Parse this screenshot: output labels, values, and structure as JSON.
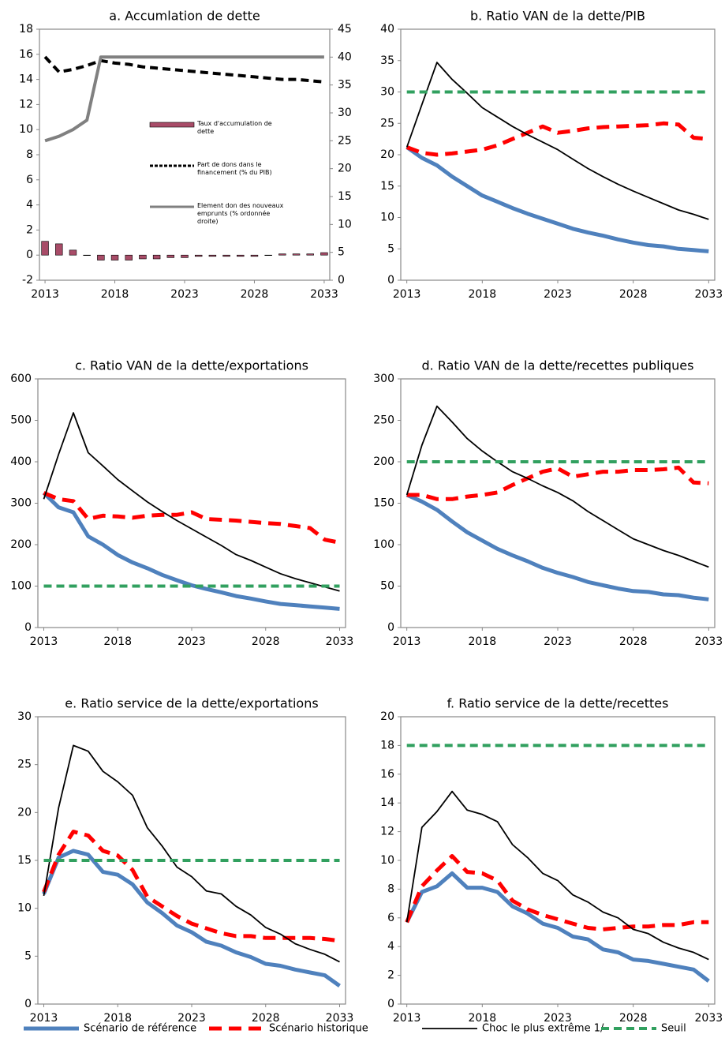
{
  "chart_data": [
    {
      "type": "combo",
      "title": "a. Accumlation  de dette",
      "x": [
        2013,
        2014,
        2015,
        2016,
        2017,
        2018,
        2019,
        2020,
        2021,
        2022,
        2023,
        2024,
        2025,
        2026,
        2027,
        2028,
        2029,
        2030,
        2031,
        2032,
        2033
      ],
      "xlim": [
        2012.6,
        2033.4
      ],
      "xticks": [
        2013,
        2018,
        2023,
        2028,
        2033
      ],
      "ylim": [
        -2,
        18
      ],
      "yticks": [
        -2,
        0,
        2,
        4,
        6,
        8,
        10,
        12,
        14,
        16,
        18
      ],
      "y2lim": [
        0,
        45
      ],
      "y2ticks": [
        0,
        5,
        10,
        15,
        20,
        25,
        30,
        35,
        40,
        45
      ],
      "series": [
        {
          "name": "Taux d'accumulation  de dette",
          "type": "bar",
          "color": "#a84c68",
          "values": [
            1.1,
            0.9,
            0.4,
            0,
            -0.4,
            -0.4,
            -0.4,
            -0.3,
            -0.3,
            -0.2,
            -0.2,
            -0.1,
            -0.1,
            -0.1,
            -0.1,
            -0.1,
            0,
            0.1,
            0.1,
            0.1,
            0.2
          ]
        },
        {
          "name": "Part de dons dans le financement  (% du PIB)",
          "type": "line",
          "style": "dashed-medium",
          "color": "#000000",
          "values": [
            15.8,
            14.6,
            14.8,
            15.1,
            15.5,
            15.3,
            15.2,
            15.0,
            14.9,
            14.8,
            14.7,
            14.6,
            14.5,
            14.4,
            14.3,
            14.2,
            14.1,
            14.0,
            14.0,
            13.9,
            13.8
          ]
        },
        {
          "name": "Element don des nouveaux emprunts (% ordonnée droite)",
          "type": "line",
          "style": "solid-medium",
          "axis": "y2",
          "color": "#808080",
          "values": [
            25,
            25.8,
            27,
            28.7,
            40,
            40,
            40,
            40,
            40,
            40,
            40,
            40,
            40,
            40,
            40,
            40,
            40,
            40,
            40,
            40,
            40
          ]
        }
      ]
    },
    {
      "type": "line",
      "title": "b. Ratio VAN  de la dette/PIB",
      "x": [
        2013,
        2014,
        2015,
        2016,
        2017,
        2018,
        2019,
        2020,
        2021,
        2022,
        2023,
        2024,
        2025,
        2026,
        2027,
        2028,
        2029,
        2030,
        2031,
        2032,
        2033
      ],
      "xlim": [
        2012.6,
        2033.4
      ],
      "xticks": [
        2013,
        2018,
        2023,
        2028,
        2033
      ],
      "ylim": [
        0,
        40
      ],
      "yticks": [
        0,
        5,
        10,
        15,
        20,
        25,
        30,
        35,
        40
      ],
      "series": [
        {
          "style": "solid-thick",
          "color": "#4f81bd",
          "values": [
            21.2,
            19.5,
            18.3,
            16.5,
            15,
            13.5,
            12.5,
            11.5,
            10.6,
            9.8,
            9,
            8.2,
            7.6,
            7.1,
            6.5,
            6,
            5.6,
            5.4,
            5,
            4.8,
            4.6
          ]
        },
        {
          "style": "dashed-thick",
          "color": "#ff0000",
          "values": [
            21.2,
            20.3,
            20,
            20.2,
            20.5,
            20.8,
            21.5,
            22.5,
            23.5,
            24.5,
            23.5,
            23.8,
            24.2,
            24.4,
            24.5,
            24.6,
            24.7,
            25,
            24.8,
            22.7,
            22.5
          ]
        },
        {
          "style": "solid-thin",
          "color": "#000000",
          "values": [
            21.2,
            28,
            34.7,
            32,
            29.8,
            27.5,
            26,
            24.5,
            23.2,
            22,
            20.8,
            19.3,
            17.8,
            16.5,
            15.3,
            14.2,
            13.2,
            12.2,
            11.2,
            10.5,
            9.7
          ]
        },
        {
          "style": "dashed-medium",
          "color": "#31a05f",
          "values": [
            30,
            30,
            30,
            30,
            30,
            30,
            30,
            30,
            30,
            30,
            30,
            30,
            30,
            30,
            30,
            30,
            30,
            30,
            30,
            30,
            30
          ]
        }
      ]
    },
    {
      "type": "line",
      "title": "c. Ratio VAN de la dette/exportations",
      "x": [
        2013,
        2014,
        2015,
        2016,
        2017,
        2018,
        2019,
        2020,
        2021,
        2022,
        2023,
        2024,
        2025,
        2026,
        2027,
        2028,
        2029,
        2030,
        2031,
        2032,
        2033
      ],
      "xlim": [
        2012.6,
        2033.4
      ],
      "xticks": [
        2013,
        2018,
        2023,
        2028,
        2033
      ],
      "ylim": [
        0,
        600
      ],
      "yticks": [
        0,
        100,
        200,
        300,
        400,
        500,
        600
      ],
      "series": [
        {
          "style": "solid-thick",
          "color": "#4f81bd",
          "values": [
            325,
            290,
            278,
            220,
            200,
            175,
            157,
            143,
            127,
            114,
            102,
            93,
            85,
            76,
            70,
            63,
            57,
            54,
            51,
            48,
            45
          ]
        },
        {
          "style": "dashed-thick",
          "color": "#ff0000",
          "values": [
            325,
            310,
            305,
            262,
            270,
            268,
            265,
            270,
            272,
            272,
            278,
            262,
            260,
            258,
            255,
            252,
            250,
            245,
            240,
            212,
            205
          ]
        },
        {
          "style": "solid-thin",
          "color": "#000000",
          "values": [
            310,
            418,
            518,
            422,
            390,
            357,
            330,
            303,
            280,
            258,
            238,
            218,
            198,
            176,
            162,
            146,
            130,
            118,
            108,
            98,
            88
          ]
        },
        {
          "style": "dashed-medium",
          "color": "#31a05f",
          "values": [
            100,
            100,
            100,
            100,
            100,
            100,
            100,
            100,
            100,
            100,
            100,
            100,
            100,
            100,
            100,
            100,
            100,
            100,
            100,
            100,
            100
          ]
        }
      ]
    },
    {
      "type": "line",
      "title": "d. Ratio VAN  de la dette/recettes  publiques",
      "x": [
        2013,
        2014,
        2015,
        2016,
        2017,
        2018,
        2019,
        2020,
        2021,
        2022,
        2023,
        2024,
        2025,
        2026,
        2027,
        2028,
        2029,
        2030,
        2031,
        2032,
        2033
      ],
      "xlim": [
        2012.6,
        2033.4
      ],
      "xticks": [
        2013,
        2018,
        2023,
        2028,
        2033
      ],
      "ylim": [
        0,
        300
      ],
      "yticks": [
        0,
        50,
        100,
        150,
        200,
        250,
        300
      ],
      "series": [
        {
          "style": "solid-thick",
          "color": "#4f81bd",
          "values": [
            160,
            152,
            142,
            128,
            115,
            105,
            95,
            87,
            80,
            72,
            66,
            61,
            55,
            51,
            47,
            44,
            43,
            40,
            39,
            36,
            34
          ]
        },
        {
          "style": "dashed-thick",
          "color": "#ff0000",
          "values": [
            160,
            160,
            155,
            155,
            158,
            160,
            163,
            172,
            180,
            188,
            192,
            182,
            185,
            188,
            188,
            190,
            190,
            191,
            193,
            175,
            174
          ]
        },
        {
          "style": "solid-thin",
          "color": "#000000",
          "values": [
            160,
            220,
            267,
            248,
            228,
            213,
            200,
            188,
            180,
            171,
            163,
            153,
            140,
            129,
            118,
            107,
            100,
            93,
            87,
            80,
            73
          ]
        },
        {
          "style": "dashed-medium",
          "color": "#31a05f",
          "values": [
            200,
            200,
            200,
            200,
            200,
            200,
            200,
            200,
            200,
            200,
            200,
            200,
            200,
            200,
            200,
            200,
            200,
            200,
            200,
            200,
            200
          ]
        }
      ]
    },
    {
      "type": "line",
      "title": "e. Ratio service de la dette/exportations",
      "x": [
        2013,
        2014,
        2015,
        2016,
        2017,
        2018,
        2019,
        2020,
        2021,
        2022,
        2023,
        2024,
        2025,
        2026,
        2027,
        2028,
        2029,
        2030,
        2031,
        2032,
        2033
      ],
      "xlim": [
        2012.6,
        2033.4
      ],
      "xticks": [
        2013,
        2018,
        2023,
        2028,
        2033
      ],
      "ylim": [
        0,
        30
      ],
      "yticks": [
        0,
        5,
        10,
        15,
        20,
        25,
        30
      ],
      "series": [
        {
          "style": "solid-thick",
          "color": "#4f81bd",
          "values": [
            11.5,
            15.3,
            16,
            15.6,
            13.8,
            13.5,
            12.5,
            10.6,
            9.5,
            8.2,
            7.5,
            6.5,
            6.1,
            5.4,
            4.9,
            4.2,
            4.0,
            3.6,
            3.3,
            3.0,
            1.9
          ]
        },
        {
          "style": "dashed-thick",
          "color": "#ff0000",
          "values": [
            11.7,
            15.6,
            18,
            17.6,
            16,
            15.5,
            14,
            11.2,
            10.2,
            9.2,
            8.4,
            7.9,
            7.4,
            7.1,
            7.1,
            6.9,
            6.9,
            6.9,
            6.9,
            6.8,
            6.6
          ]
        },
        {
          "style": "solid-thin",
          "color": "#000000",
          "values": [
            11.3,
            20.5,
            27,
            26.4,
            24.3,
            23.2,
            21.8,
            18.4,
            16.5,
            14.3,
            13.3,
            11.8,
            11.5,
            10.2,
            9.3,
            8,
            7.3,
            6.3,
            5.7,
            5.2,
            4.4
          ]
        },
        {
          "style": "dashed-medium",
          "color": "#31a05f",
          "values": [
            15,
            15,
            15,
            15,
            15,
            15,
            15,
            15,
            15,
            15,
            15,
            15,
            15,
            15,
            15,
            15,
            15,
            15,
            15,
            15,
            15
          ]
        }
      ]
    },
    {
      "type": "line",
      "title": "f. Ratio service de la dette/recettes",
      "x": [
        2013,
        2014,
        2015,
        2016,
        2017,
        2018,
        2019,
        2020,
        2021,
        2022,
        2023,
        2024,
        2025,
        2026,
        2027,
        2028,
        2029,
        2030,
        2031,
        2032,
        2033
      ],
      "xlim": [
        2012.6,
        2033.4
      ],
      "xticks": [
        2013,
        2018,
        2023,
        2028,
        2033
      ],
      "ylim": [
        0,
        20
      ],
      "yticks": [
        0,
        2,
        4,
        6,
        8,
        10,
        12,
        14,
        16,
        18,
        20
      ],
      "series": [
        {
          "style": "solid-thick",
          "color": "#4f81bd",
          "values": [
            5.7,
            7.8,
            8.2,
            9.1,
            8.1,
            8.1,
            7.8,
            6.8,
            6.3,
            5.6,
            5.3,
            4.7,
            4.5,
            3.8,
            3.6,
            3.1,
            3.0,
            2.8,
            2.6,
            2.4,
            1.6
          ]
        },
        {
          "style": "dashed-thick",
          "color": "#ff0000",
          "values": [
            5.7,
            8.2,
            9.3,
            10.3,
            9.2,
            9.1,
            8.6,
            7.2,
            6.6,
            6.2,
            5.9,
            5.6,
            5.3,
            5.2,
            5.3,
            5.4,
            5.4,
            5.5,
            5.5,
            5.7,
            5.7
          ]
        },
        {
          "style": "solid-thin",
          "color": "#000000",
          "values": [
            5.7,
            12.3,
            13.4,
            14.8,
            13.5,
            13.2,
            12.7,
            11.1,
            10.2,
            9.1,
            8.6,
            7.6,
            7.1,
            6.4,
            6.0,
            5.2,
            4.9,
            4.3,
            3.9,
            3.6,
            3.1
          ]
        },
        {
          "style": "dashed-medium",
          "color": "#31a05f",
          "values": [
            18,
            18,
            18,
            18,
            18,
            18,
            18,
            18,
            18,
            18,
            18,
            18,
            18,
            18,
            18,
            18,
            18,
            18,
            18,
            18,
            18
          ]
        }
      ]
    }
  ],
  "legend": [
    "Scénario de référence",
    "Scénario historique",
    "Choc le plus extrême 1/",
    "Seuil"
  ]
}
